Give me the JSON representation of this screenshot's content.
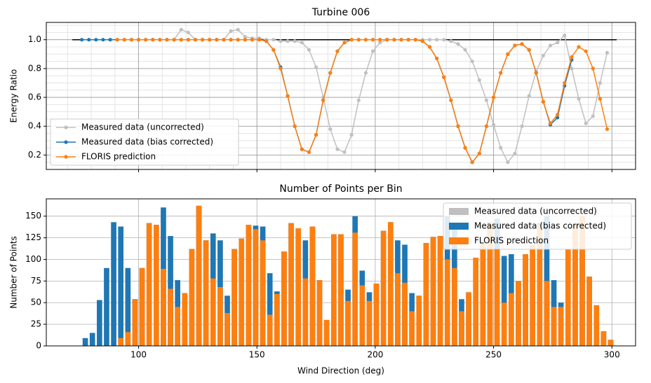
{
  "chart_data": [
    {
      "type": "line",
      "title": "Turbine 006",
      "ylabel": "Energy Ratio",
      "x": [
        76,
        79,
        82,
        85,
        88,
        91,
        94,
        97,
        100,
        103,
        106,
        109,
        112,
        115,
        118,
        121,
        124,
        127,
        130,
        133,
        136,
        139,
        142,
        145,
        148,
        151,
        154,
        157,
        160,
        163,
        166,
        169,
        172,
        175,
        178,
        181,
        184,
        187,
        190,
        193,
        196,
        199,
        202,
        205,
        208,
        211,
        214,
        217,
        220,
        223,
        226,
        229,
        232,
        235,
        238,
        241,
        244,
        247,
        250,
        253,
        256,
        259,
        262,
        265,
        268,
        271,
        274,
        277,
        280,
        283,
        286,
        289,
        292,
        295,
        298
      ],
      "series": [
        {
          "name": "Measured data (uncorrected)",
          "color": "#c0c0c0",
          "values": [
            null,
            null,
            null,
            null,
            1,
            1,
            1,
            1,
            1,
            1,
            1,
            1,
            1,
            1,
            1.07,
            1.05,
            1,
            1,
            1,
            1,
            1,
            1.06,
            1.07,
            1.02,
            1.01,
            1.01,
            1,
            1,
            0.99,
            0.99,
            0.99,
            0.98,
            0.93,
            0.81,
            0.6,
            0.38,
            0.24,
            0.22,
            0.34,
            0.58,
            0.77,
            0.92,
            0.98,
            1,
            1,
            1,
            1,
            1,
            1,
            1,
            1,
            1,
            0.99,
            0.97,
            0.93,
            0.85,
            0.72,
            0.58,
            0.41,
            0.25,
            0.15,
            0.21,
            0.4,
            0.61,
            0.78,
            0.89,
            0.96,
            0.98,
            1.03,
            0.8,
            0.59,
            0.42,
            0.47,
            0.7,
            0.91
          ]
        },
        {
          "name": "Measured data (bias corrected)",
          "color": "#1f77b4",
          "values": [
            1,
            1,
            1,
            1,
            1,
            1,
            1,
            1,
            1,
            1,
            1,
            1,
            1,
            1,
            1,
            1,
            1,
            1,
            1,
            1,
            1,
            1,
            1,
            1,
            1,
            1,
            0.99,
            0.93,
            0.81,
            0.61,
            0.4,
            0.24,
            0.22,
            0.34,
            0.58,
            0.77,
            0.92,
            0.98,
            1,
            1,
            1,
            1,
            1,
            1,
            1,
            1,
            1,
            1,
            0.99,
            0.95,
            0.87,
            0.74,
            0.58,
            0.4,
            0.25,
            0.15,
            0.21,
            0.4,
            0.6,
            0.77,
            0.9,
            0.96,
            0.97,
            0.93,
            0.77,
            0.57,
            0.41,
            0.46,
            0.68,
            0.86,
            null,
            null,
            null,
            null,
            null
          ]
        },
        {
          "name": "FLORIS prediction",
          "color": "#ff7f0e",
          "values": [
            null,
            null,
            null,
            null,
            null,
            1,
            1,
            1,
            1,
            1,
            1,
            1,
            1,
            1,
            1,
            1,
            1,
            1,
            1,
            1,
            1,
            1,
            1,
            1,
            1,
            1,
            0.99,
            0.93,
            0.8,
            0.61,
            0.4,
            0.24,
            0.22,
            0.34,
            0.58,
            0.77,
            0.92,
            0.98,
            1,
            1,
            1,
            1,
            1,
            1,
            1,
            1,
            1,
            1,
            0.99,
            0.95,
            0.87,
            0.74,
            0.58,
            0.4,
            0.25,
            0.15,
            0.21,
            0.4,
            0.6,
            0.77,
            0.9,
            0.96,
            0.97,
            0.93,
            0.77,
            0.57,
            0.42,
            0.48,
            0.7,
            0.88,
            0.95,
            0.92,
            0.8,
            0.59,
            0.38
          ]
        }
      ],
      "reference_line": {
        "x": [
          72,
          302
        ],
        "values": [
          1,
          1
        ],
        "color": "#000000"
      },
      "xlim": [
        61,
        310
      ],
      "xticks": [
        100,
        150,
        200,
        250,
        300
      ],
      "ylim": [
        0.1,
        1.12
      ],
      "yticks": [
        0.2,
        0.4,
        0.6,
        0.8,
        {
          "value": 1,
          "label": "1.0"
        }
      ],
      "grid": true,
      "minor_grid": true,
      "legend": "lower left"
    },
    {
      "type": "bar",
      "title": "Number of Points per Bin",
      "xlabel": "Wind Direction (deg)",
      "ylabel": "Number of Points",
      "x": [
        76,
        79,
        82,
        85,
        88,
        91,
        94,
        97,
        100,
        103,
        106,
        109,
        112,
        115,
        118,
        121,
        124,
        127,
        130,
        133,
        136,
        139,
        142,
        145,
        148,
        151,
        154,
        157,
        160,
        163,
        166,
        169,
        172,
        175,
        178,
        181,
        184,
        187,
        190,
        193,
        196,
        199,
        202,
        205,
        208,
        211,
        214,
        217,
        220,
        223,
        226,
        229,
        232,
        235,
        238,
        241,
        244,
        247,
        250,
        253,
        256,
        259,
        262,
        265,
        268,
        271,
        274,
        277,
        280,
        283,
        286,
        289,
        292,
        295,
        298
      ],
      "series": [
        {
          "name": "Measured data (uncorrected)",
          "color": "#bfbfbf",
          "values": [
            9,
            15,
            53,
            90,
            143,
            138,
            90,
            54,
            90,
            142,
            140,
            160,
            127,
            76,
            61,
            112,
            162,
            122,
            130,
            122,
            58,
            112,
            124,
            140,
            139,
            138,
            84,
            63,
            109,
            142,
            136,
            122,
            138,
            76,
            30,
            129,
            129,
            65,
            150,
            87,
            62,
            72,
            133,
            143,
            122,
            117,
            61,
            58,
            119,
            126,
            127,
            150,
            136,
            54,
            62,
            102,
            119,
            143,
            147,
            104,
            106,
            75,
            106,
            117,
            142,
            150,
            76,
            50,
            112,
            140,
            150,
            80,
            47,
            17,
            7
          ]
        },
        {
          "name": "Measured data (bias corrected)",
          "color": "#1f77b4",
          "values": [
            9,
            15,
            53,
            90,
            143,
            138,
            90,
            54,
            90,
            142,
            140,
            160,
            127,
            76,
            61,
            112,
            162,
            122,
            130,
            122,
            58,
            112,
            124,
            140,
            139,
            138,
            84,
            63,
            109,
            142,
            136,
            122,
            138,
            76,
            30,
            129,
            129,
            65,
            150,
            87,
            62,
            72,
            133,
            143,
            122,
            117,
            61,
            58,
            119,
            126,
            127,
            150,
            136,
            54,
            62,
            102,
            119,
            143,
            147,
            104,
            106,
            75,
            106,
            117,
            142,
            150,
            76,
            50,
            112,
            140,
            150,
            80,
            47,
            17,
            7
          ]
        },
        {
          "name": "FLORIS prediction",
          "color": "#ff7f0e",
          "values": [
            null,
            null,
            null,
            null,
            null,
            9,
            16,
            54,
            90,
            142,
            140,
            89,
            66,
            45,
            61,
            112,
            162,
            122,
            78,
            68,
            38,
            112,
            124,
            140,
            135,
            122,
            36,
            60,
            109,
            142,
            136,
            78,
            138,
            76,
            30,
            129,
            129,
            52,
            131,
            70,
            52,
            72,
            133,
            143,
            84,
            73,
            40,
            58,
            119,
            126,
            127,
            100,
            90,
            40,
            62,
            102,
            119,
            143,
            111,
            50,
            61,
            75,
            106,
            117,
            140,
            75,
            45,
            45,
            112,
            140,
            150,
            80,
            47,
            17,
            7
          ]
        }
      ],
      "xlim": [
        61,
        310
      ],
      "xticks": [
        100,
        150,
        200,
        250,
        300
      ],
      "ylim": [
        0,
        170
      ],
      "yticks": [
        0,
        25,
        50,
        75,
        100,
        125,
        150
      ],
      "grid": true,
      "legend": "upper right"
    }
  ]
}
